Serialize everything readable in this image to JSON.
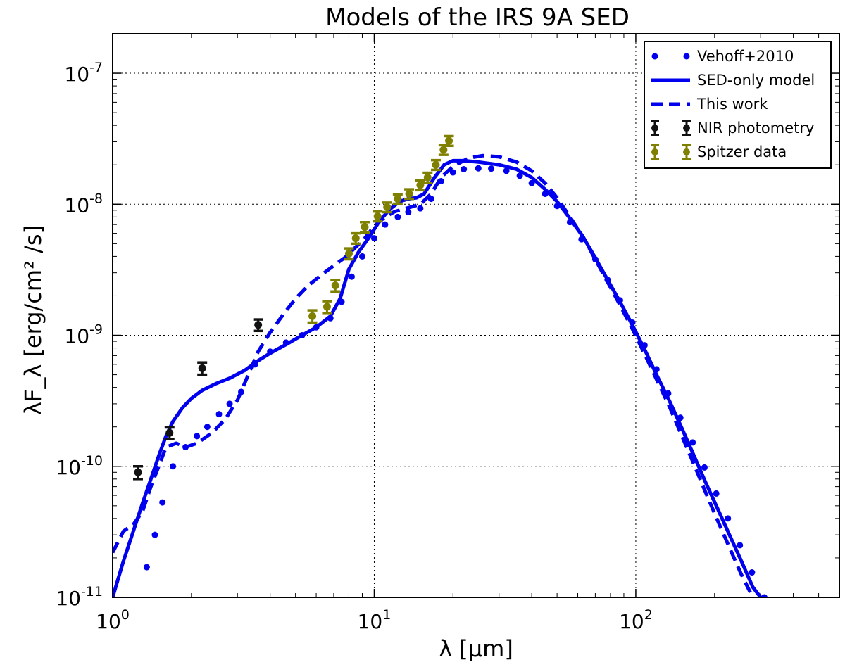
{
  "chart_data": {
    "type": "line",
    "title": "Models of the IRS 9A SED",
    "xlabel": "λ [μm]",
    "ylabel": "λF_λ [erg/cm² /s]",
    "xscale": "log",
    "yscale": "log",
    "xlim": [
      1,
      600
    ],
    "ylim": [
      1e-11,
      2e-07
    ],
    "grid": true,
    "x_ticks": [
      {
        "value": 1,
        "base": "10",
        "exp": "0"
      },
      {
        "value": 10,
        "base": "10",
        "exp": "1"
      },
      {
        "value": 100,
        "base": "10",
        "exp": "2"
      }
    ],
    "y_ticks": [
      {
        "value": 1e-11,
        "base": "10",
        "exp": "-11"
      },
      {
        "value": 1e-10,
        "base": "10",
        "exp": "-10"
      },
      {
        "value": 1e-09,
        "base": "10",
        "exp": "-9"
      },
      {
        "value": 1e-08,
        "base": "10",
        "exp": "-8"
      },
      {
        "value": 1e-07,
        "base": "10",
        "exp": "-7"
      }
    ],
    "legend_position": "top-right",
    "series": [
      {
        "name": "Vehoff+2010",
        "style": "dotted",
        "color": "#0000ee",
        "points": [
          [
            1.35,
            1.7e-11
          ],
          [
            1.45,
            3e-11
          ],
          [
            1.55,
            5.3e-11
          ],
          [
            1.7,
            1e-10
          ],
          [
            1.9,
            1.4e-10
          ],
          [
            2.1,
            1.7e-10
          ],
          [
            2.3,
            2e-10
          ],
          [
            2.55,
            2.5e-10
          ],
          [
            2.8,
            3e-10
          ],
          [
            3.1,
            3.7e-10
          ],
          [
            3.5,
            6e-10
          ],
          [
            4,
            7.5e-10
          ],
          [
            4.6,
            8.8e-10
          ],
          [
            5.3,
            1e-09
          ],
          [
            6,
            1.15e-09
          ],
          [
            6.8,
            1.35e-09
          ],
          [
            7.5,
            1.8e-09
          ],
          [
            8.2,
            2.8e-09
          ],
          [
            9,
            4e-09
          ],
          [
            10,
            5.5e-09
          ],
          [
            11,
            7e-09
          ],
          [
            12.3,
            8e-09
          ],
          [
            13.5,
            8.7e-09
          ],
          [
            15,
            9.3e-09
          ],
          [
            16.5,
            1.1e-08
          ],
          [
            18,
            1.5e-08
          ],
          [
            20,
            1.75e-08
          ],
          [
            22,
            1.85e-08
          ],
          [
            25,
            1.88e-08
          ],
          [
            28,
            1.87e-08
          ],
          [
            32,
            1.8e-08
          ],
          [
            36,
            1.65e-08
          ],
          [
            40,
            1.45e-08
          ],
          [
            45,
            1.2e-08
          ],
          [
            50,
            9.7e-09
          ],
          [
            56,
            7.3e-09
          ],
          [
            62,
            5.4e-09
          ],
          [
            70,
            3.8e-09
          ],
          [
            78,
            2.65e-09
          ],
          [
            87,
            1.85e-09
          ],
          [
            97,
            1.25e-09
          ],
          [
            108,
            8.4e-10
          ],
          [
            120,
            5.5e-10
          ],
          [
            133,
            3.6e-10
          ],
          [
            148,
            2.35e-10
          ],
          [
            165,
            1.52e-10
          ],
          [
            183,
            9.8e-11
          ],
          [
            203,
            6.2e-11
          ],
          [
            225,
            4e-11
          ],
          [
            250,
            2.5e-11
          ],
          [
            278,
            1.55e-11
          ],
          [
            310,
            1e-11
          ]
        ]
      },
      {
        "name": "SED-only model",
        "style": "solid",
        "color": "#0000ee",
        "points": [
          [
            1,
            1e-11
          ],
          [
            1.1,
            1.9e-11
          ],
          [
            1.2,
            3.2e-11
          ],
          [
            1.3,
            5.2e-11
          ],
          [
            1.4,
            8e-11
          ],
          [
            1.5,
            1.2e-10
          ],
          [
            1.6,
            1.7e-10
          ],
          [
            1.7,
            2.2e-10
          ],
          [
            1.85,
            2.8e-10
          ],
          [
            2,
            3.3e-10
          ],
          [
            2.2,
            3.8e-10
          ],
          [
            2.5,
            4.3e-10
          ],
          [
            2.8,
            4.7e-10
          ],
          [
            3.2,
            5.4e-10
          ],
          [
            3.6,
            6.4e-10
          ],
          [
            4,
            7.3e-10
          ],
          [
            4.6,
            8.5e-10
          ],
          [
            5.3,
            1e-09
          ],
          [
            6,
            1.15e-09
          ],
          [
            6.8,
            1.4e-09
          ],
          [
            7.4,
            1.9e-09
          ],
          [
            8,
            3.2e-09
          ],
          [
            8.7,
            4.3e-09
          ],
          [
            9.5,
            5.5e-09
          ],
          [
            10.5,
            7.5e-09
          ],
          [
            11.5,
            9.2e-09
          ],
          [
            12.5,
            1.05e-08
          ],
          [
            13.5,
            1.1e-08
          ],
          [
            14.5,
            1.12e-08
          ],
          [
            15.5,
            1.2e-08
          ],
          [
            17,
            1.6e-08
          ],
          [
            18.5,
            2e-08
          ],
          [
            20,
            2.15e-08
          ],
          [
            22,
            2.15e-08
          ],
          [
            25,
            2.1e-08
          ],
          [
            30,
            2e-08
          ],
          [
            35,
            1.85e-08
          ],
          [
            40,
            1.6e-08
          ],
          [
            45,
            1.3e-08
          ],
          [
            50,
            1.05e-08
          ],
          [
            56,
            7.8e-09
          ],
          [
            63,
            5.6e-09
          ],
          [
            70,
            3.9e-09
          ],
          [
            78,
            2.65e-09
          ],
          [
            87,
            1.8e-09
          ],
          [
            97,
            1.2e-09
          ],
          [
            108,
            7.8e-10
          ],
          [
            120,
            5e-10
          ],
          [
            135,
            3.1e-10
          ],
          [
            150,
            1.95e-10
          ],
          [
            167,
            1.2e-10
          ],
          [
            185,
            7.5e-11
          ],
          [
            205,
            4.8e-11
          ],
          [
            228,
            3e-11
          ],
          [
            253,
            1.9e-11
          ],
          [
            280,
            1.2e-11
          ],
          [
            300,
            1e-11
          ]
        ]
      },
      {
        "name": "This work",
        "style": "dashed",
        "color": "#0000ee",
        "points": [
          [
            1,
            2.2e-11
          ],
          [
            1.1,
            3.2e-11
          ],
          [
            1.2,
            3.6e-11
          ],
          [
            1.3,
            4.5e-11
          ],
          [
            1.4,
            7e-11
          ],
          [
            1.5,
            1e-10
          ],
          [
            1.6,
            1.4e-10
          ],
          [
            1.75,
            1.5e-10
          ],
          [
            1.9,
            1.4e-10
          ],
          [
            2.1,
            1.5e-10
          ],
          [
            2.4,
            1.8e-10
          ],
          [
            2.7,
            2.3e-10
          ],
          [
            3,
            3.2e-10
          ],
          [
            3.3,
            5e-10
          ],
          [
            3.6,
            7.5e-10
          ],
          [
            4,
            1.05e-09
          ],
          [
            4.5,
            1.45e-09
          ],
          [
            5,
            1.9e-09
          ],
          [
            5.6,
            2.4e-09
          ],
          [
            6.3,
            2.9e-09
          ],
          [
            7,
            3.4e-09
          ],
          [
            7.7,
            3.9e-09
          ],
          [
            8.4,
            4.6e-09
          ],
          [
            9.2,
            5.5e-09
          ],
          [
            10,
            6.8e-09
          ],
          [
            11,
            8e-09
          ],
          [
            12,
            8.8e-09
          ],
          [
            13.5,
            9.4e-09
          ],
          [
            15,
            1e-08
          ],
          [
            16.5,
            1.2e-08
          ],
          [
            18,
            1.6e-08
          ],
          [
            20,
            1.95e-08
          ],
          [
            23,
            2.25e-08
          ],
          [
            26,
            2.35e-08
          ],
          [
            30,
            2.3e-08
          ],
          [
            35,
            2.1e-08
          ],
          [
            40,
            1.8e-08
          ],
          [
            45,
            1.45e-08
          ],
          [
            50,
            1.12e-08
          ],
          [
            56,
            8e-09
          ],
          [
            63,
            5.6e-09
          ],
          [
            70,
            3.8e-09
          ],
          [
            78,
            2.55e-09
          ],
          [
            87,
            1.7e-09
          ],
          [
            97,
            1.12e-09
          ],
          [
            108,
            7.2e-10
          ],
          [
            120,
            4.6e-10
          ],
          [
            135,
            2.8e-10
          ],
          [
            150,
            1.7e-10
          ],
          [
            167,
            1.03e-10
          ],
          [
            185,
            6.3e-11
          ],
          [
            205,
            3.9e-11
          ],
          [
            228,
            2.4e-11
          ],
          [
            253,
            1.5e-11
          ],
          [
            280,
            1e-11
          ]
        ]
      }
    ],
    "errorbar_series": [
      {
        "name": "NIR photometry",
        "color": "#111111",
        "points": [
          [
            1.25,
            9e-11,
            1e-11
          ],
          [
            1.65,
            1.8e-10,
            1.8e-11
          ],
          [
            2.2,
            5.6e-10,
            6e-11
          ],
          [
            3.6,
            1.2e-09,
            1.2e-10
          ]
        ]
      },
      {
        "name": "Spitzer data",
        "color": "#808000",
        "points": [
          [
            5.8,
            1.4e-09,
            1.5e-10
          ],
          [
            6.6,
            1.65e-09,
            1.7e-10
          ],
          [
            7.1,
            2.4e-09,
            2.4e-10
          ],
          [
            8,
            4.2e-09,
            4e-10
          ],
          [
            8.5,
            5.5e-09,
            5e-10
          ],
          [
            9.2,
            6.7e-09,
            6e-10
          ],
          [
            10.3,
            8.1e-09,
            7e-10
          ],
          [
            11.2,
            9.5e-09,
            8e-10
          ],
          [
            12.3,
            1.1e-08,
            9e-10
          ],
          [
            13.6,
            1.2e-08,
            1e-09
          ],
          [
            15,
            1.4e-08,
            1.2e-09
          ],
          [
            16,
            1.6e-08,
            1.4e-09
          ],
          [
            17.2,
            2e-08,
            1.7e-09
          ],
          [
            18.4,
            2.6e-08,
            2.2e-09
          ],
          [
            19.3,
            3.05e-08,
            2.6e-09
          ]
        ]
      }
    ]
  }
}
